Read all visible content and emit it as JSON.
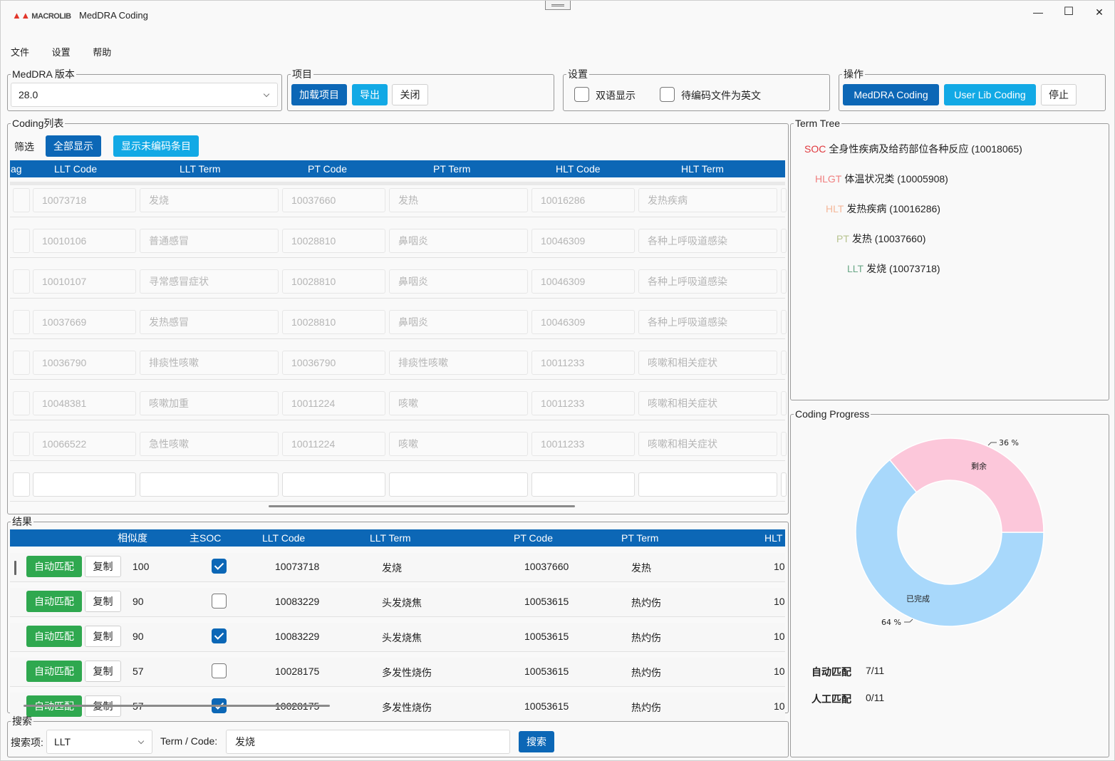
{
  "window": {
    "logo_text": "MACROLIB",
    "title": "MedDRA Coding",
    "min_glyph": "—",
    "max_glyph": "☐",
    "close_glyph": "✕"
  },
  "menu": [
    "文件",
    "设置",
    "帮助"
  ],
  "meddra_version": {
    "legend": "MedDRA 版本",
    "value": "28.0"
  },
  "project": {
    "legend": "项目",
    "load_label": "加载项目",
    "export_label": "导出",
    "close_label": "关闭"
  },
  "settings": {
    "legend": "设置",
    "bilingual_label": "双语显示",
    "bilingual_checked": false,
    "english_source_label": "待编码文件为英文",
    "english_source_checked": false
  },
  "operations": {
    "legend": "操作",
    "meddra_coding_label": "MedDRA Coding",
    "userlib_coding_label": "User Lib Coding",
    "stop_label": "停止"
  },
  "coding_list": {
    "legend": "Coding列表",
    "filter_label": "筛选",
    "show_all_label": "全部显示",
    "show_uncoded_label": "显示未编码条目",
    "columns": [
      "ag",
      "LLT Code",
      "LLT Term",
      "PT Code",
      "PT Term",
      "HLT Code",
      "HLT Term"
    ],
    "rows": [
      [
        "10073718",
        "发烧",
        "10037660",
        "发热",
        "10016286",
        "发热疾病"
      ],
      [
        "10010106",
        "普通感冒",
        "10028810",
        "鼻咽炎",
        "10046309",
        "各种上呼吸道感染"
      ],
      [
        "10010107",
        "寻常感冒症状",
        "10028810",
        "鼻咽炎",
        "10046309",
        "各种上呼吸道感染"
      ],
      [
        "10037669",
        "发热感冒",
        "10028810",
        "鼻咽炎",
        "10046309",
        "各种上呼吸道感染"
      ],
      [
        "10036790",
        "排痰性咳嗽",
        "10036790",
        "排痰性咳嗽",
        "10011233",
        "咳嗽和相关症状"
      ],
      [
        "10048381",
        "咳嗽加重",
        "10011224",
        "咳嗽",
        "10011233",
        "咳嗽和相关症状"
      ],
      [
        "10066522",
        "急性咳嗽",
        "10011224",
        "咳嗽",
        "10011233",
        "咳嗽和相关症状"
      ],
      [
        "",
        "",
        "",
        "",
        "",
        ""
      ]
    ]
  },
  "results": {
    "legend": "结果",
    "columns": [
      "相似度",
      "主SOC",
      "LLT Code",
      "LLT Term",
      "PT Code",
      "PT Term",
      "HLT"
    ],
    "auto_label": "自动匹配",
    "copy_label": "复制",
    "rows": [
      {
        "similarity": "100",
        "main_soc": true,
        "llt_code": "10073718",
        "llt_term": "发烧",
        "pt_code": "10037660",
        "pt_term": "发热",
        "hlt": "10"
      },
      {
        "similarity": "90",
        "main_soc": false,
        "llt_code": "10083229",
        "llt_term": "头发烧焦",
        "pt_code": "10053615",
        "pt_term": "热灼伤",
        "hlt": "10"
      },
      {
        "similarity": "90",
        "main_soc": true,
        "llt_code": "10083229",
        "llt_term": "头发烧焦",
        "pt_code": "10053615",
        "pt_term": "热灼伤",
        "hlt": "10"
      },
      {
        "similarity": "57",
        "main_soc": false,
        "llt_code": "10028175",
        "llt_term": "多发性烧伤",
        "pt_code": "10053615",
        "pt_term": "热灼伤",
        "hlt": "10"
      },
      {
        "similarity": "57",
        "main_soc": true,
        "llt_code": "10028175",
        "llt_term": "多发性烧伤",
        "pt_code": "10053615",
        "pt_term": "热灼伤",
        "hlt": "10"
      }
    ]
  },
  "search": {
    "legend": "搜索",
    "field_label": "搜索项:",
    "field_value": "LLT",
    "term_label": "Term / Code:",
    "term_value": "发烧",
    "search_label": "搜索"
  },
  "term_tree": {
    "legend": "Term Tree",
    "nodes": [
      {
        "level": "SOC",
        "text": "全身性疾病及给药部位各种反应 (10018065)",
        "color": "#e0393e"
      },
      {
        "level": "HLGT",
        "text": "体温状况类 (10005908)",
        "color": "#f08080"
      },
      {
        "level": "HLT",
        "text": "发热疾病 (10016286)",
        "color": "#f5b89a"
      },
      {
        "level": "PT",
        "text": "发热 (10037660)",
        "color": "#b7c38f"
      },
      {
        "level": "LLT",
        "text": "发烧 (10073718)",
        "color": "#6aa787"
      }
    ]
  },
  "coding_progress": {
    "legend": "Coding Progress",
    "remaining_label": "剩余",
    "remaining_pct_label": "36 %",
    "done_label": "已完成",
    "done_pct_label": "64 %",
    "remaining_fraction": 0.36,
    "remaining_color": "#fcc7da",
    "done_color": "#a8d8fb",
    "auto_label": "自动匹配",
    "auto_value": "7/11",
    "manual_label": "人工匹配",
    "manual_value": "0/11"
  }
}
